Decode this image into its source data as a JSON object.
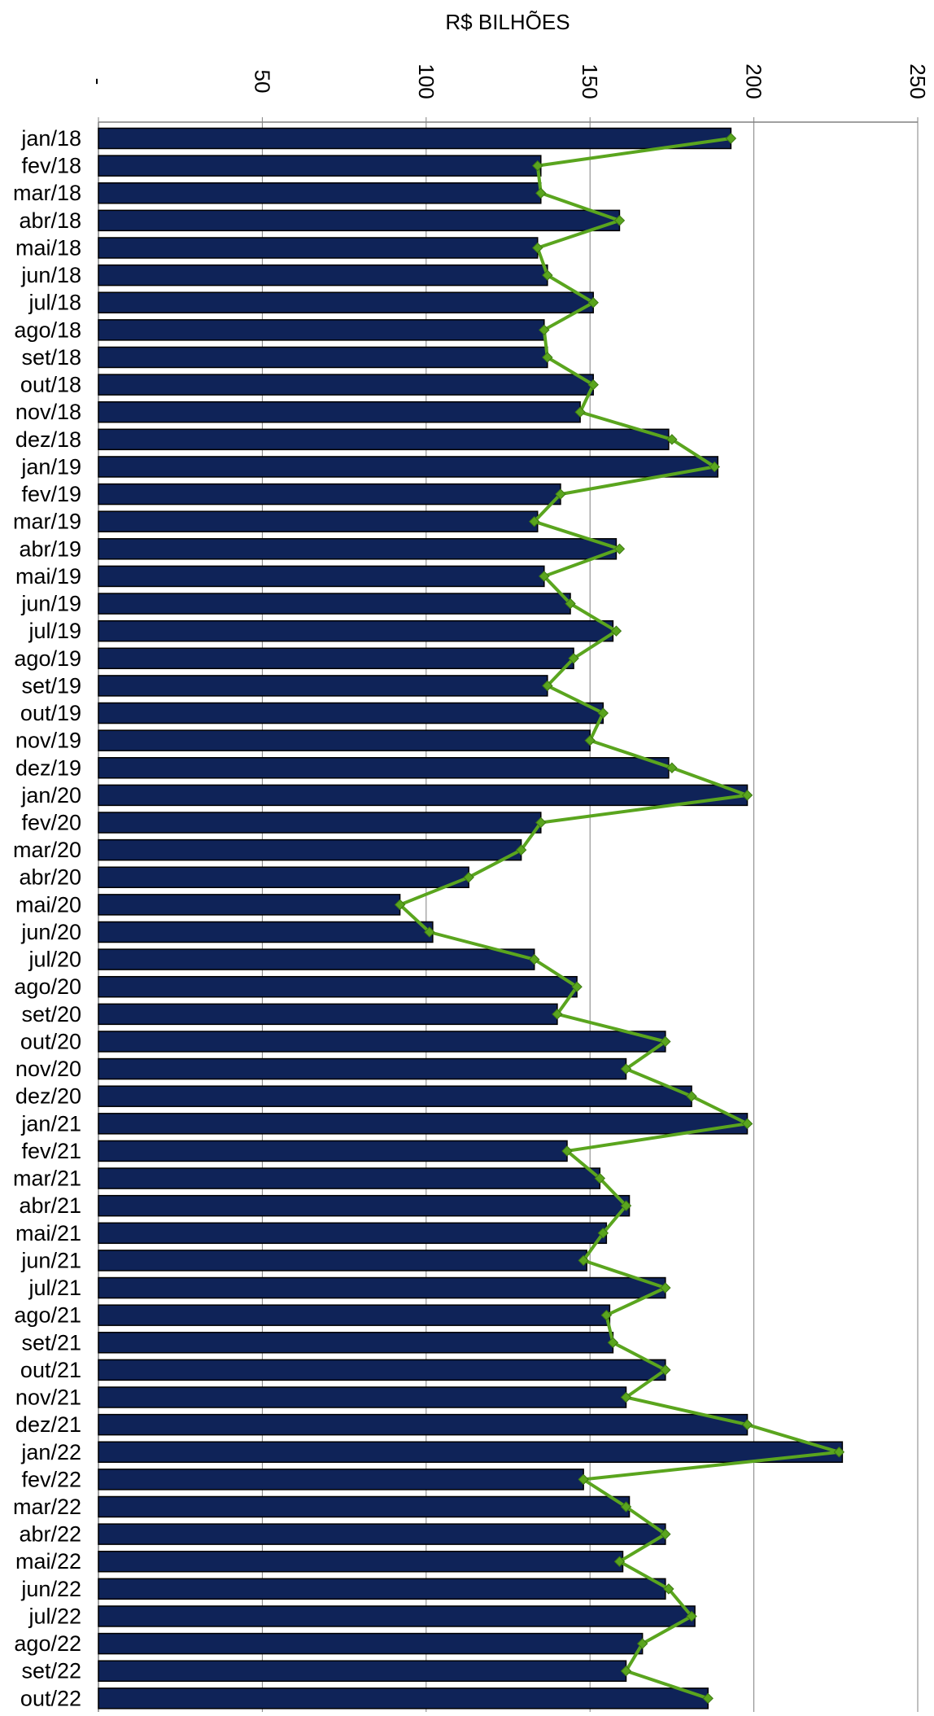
{
  "chart_data": {
    "type": "bar",
    "orientation": "horizontal",
    "title": "",
    "xlabel": "R$ BILHÕES",
    "ylabel": "",
    "xlim": [
      0,
      250
    ],
    "x_ticks": [
      0,
      50,
      100,
      150,
      200,
      250
    ],
    "x_tick_labels": [
      "-",
      "50",
      "100",
      "150",
      "200",
      "250"
    ],
    "grid": true,
    "legend": "none",
    "colors": {
      "bar": "#0f2358",
      "bar_edge": "#000000",
      "line": "#5aa51e",
      "marker": "#5aa51e",
      "grid": "#808080"
    },
    "categories": [
      "jan/18",
      "fev/18",
      "mar/18",
      "abr/18",
      "mai/18",
      "jun/18",
      "jul/18",
      "ago/18",
      "set/18",
      "out/18",
      "nov/18",
      "dez/18",
      "jan/19",
      "fev/19",
      "mar/19",
      "abr/19",
      "mai/19",
      "jun/19",
      "jul/19",
      "ago/19",
      "set/19",
      "out/19",
      "nov/19",
      "dez/19",
      "jan/20",
      "fev/20",
      "mar/20",
      "abr/20",
      "mai/20",
      "jun/20",
      "jul/20",
      "ago/20",
      "set/20",
      "out/20",
      "nov/20",
      "dez/20",
      "jan/21",
      "fev/21",
      "mar/21",
      "abr/21",
      "mai/21",
      "jun/21",
      "jul/21",
      "ago/21",
      "set/21",
      "out/21",
      "nov/21",
      "dez/21",
      "jan/22",
      "fev/22",
      "mar/22",
      "abr/22",
      "mai/22",
      "jun/22",
      "jul/22",
      "ago/22",
      "set/22",
      "out/22"
    ],
    "series": [
      {
        "type": "bar",
        "values": [
          193,
          135,
          135,
          159,
          134,
          137,
          151,
          136,
          137,
          151,
          147,
          174,
          189,
          141,
          134,
          158,
          136,
          144,
          157,
          145,
          137,
          154,
          150,
          174,
          198,
          135,
          129,
          113,
          92,
          102,
          133,
          146,
          140,
          173,
          161,
          181,
          198,
          143,
          153,
          162,
          155,
          149,
          173,
          156,
          157,
          173,
          161,
          198,
          227,
          148,
          162,
          173,
          160,
          173,
          182,
          166,
          161,
          186
        ]
      },
      {
        "type": "line",
        "values": [
          193,
          134,
          135,
          159,
          134,
          137,
          151,
          136,
          137,
          151,
          147,
          175,
          188,
          141,
          133,
          159,
          136,
          144,
          158,
          145,
          137,
          154,
          150,
          175,
          198,
          135,
          129,
          113,
          92,
          101,
          133,
          146,
          140,
          173,
          161,
          181,
          198,
          143,
          153,
          161,
          154,
          148,
          173,
          155,
          157,
          173,
          161,
          198,
          226,
          148,
          161,
          173,
          159,
          174,
          181,
          166,
          161,
          186
        ]
      }
    ]
  }
}
